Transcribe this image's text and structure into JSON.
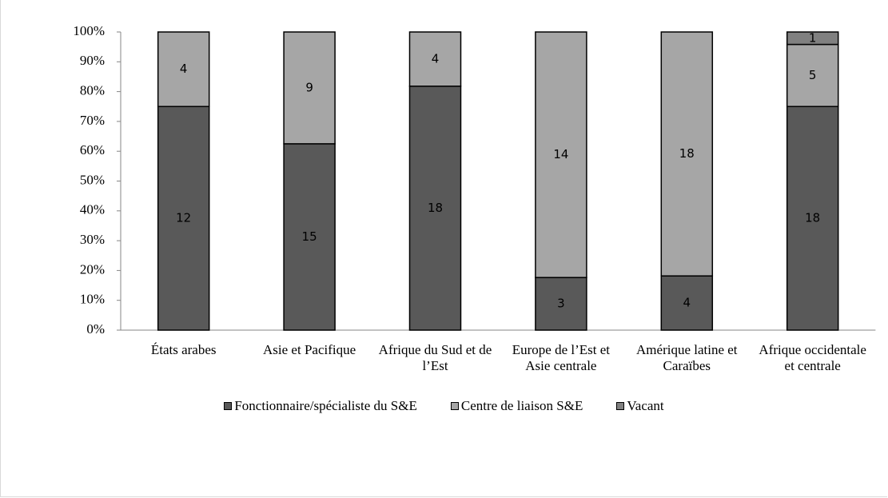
{
  "chart_data": {
    "type": "bar",
    "stacked": "percent",
    "categories": [
      "États arabes",
      "Asie et Pacifique",
      "Afrique du Sud et de l’Est",
      "Europe de l’Est et Asie centrale",
      "Amérique latine et Caraïbes",
      "Afrique occidentale et centrale"
    ],
    "series": [
      {
        "name": "Fonctionnaire/spécialiste du S&E",
        "color": "#595959",
        "values": [
          12,
          15,
          18,
          3,
          4,
          18
        ]
      },
      {
        "name": "Centre de liaison S&E",
        "color": "#a6a6a6",
        "values": [
          4,
          9,
          4,
          14,
          18,
          5
        ]
      },
      {
        "name": "Vacant",
        "color": "#808080",
        "values": [
          0,
          0,
          0,
          0,
          0,
          1
        ]
      }
    ],
    "ylim": [
      0,
      100
    ],
    "yticks": [
      {
        "value": 0,
        "label": "0%"
      },
      {
        "value": 10,
        "label": "10%"
      },
      {
        "value": 20,
        "label": "20%"
      },
      {
        "value": 30,
        "label": "30%"
      },
      {
        "value": 40,
        "label": "40%"
      },
      {
        "value": 50,
        "label": "50%"
      },
      {
        "value": 60,
        "label": "60%"
      },
      {
        "value": 70,
        "label": "70%"
      },
      {
        "value": 80,
        "label": "80%"
      },
      {
        "value": 90,
        "label": "90%"
      },
      {
        "value": 100,
        "label": "100%"
      }
    ],
    "legend": "bottom"
  }
}
